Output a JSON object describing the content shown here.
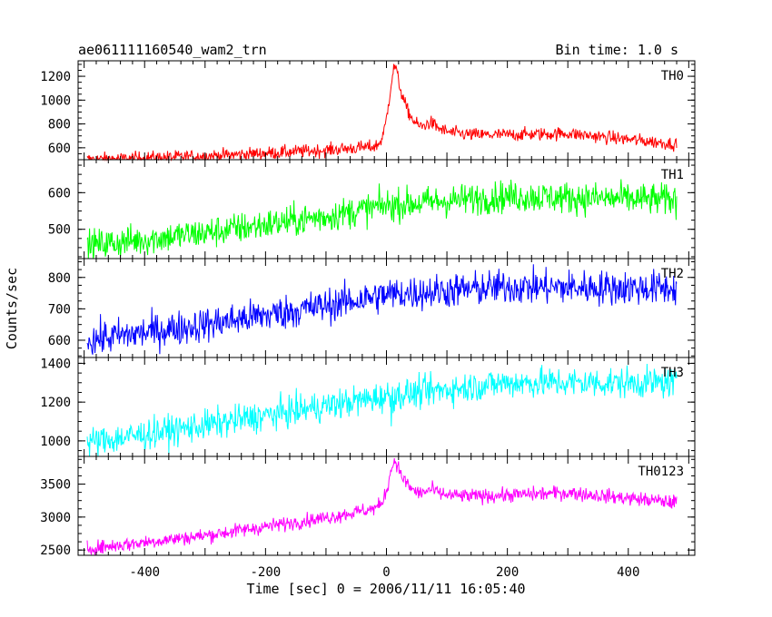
{
  "chart_data": {
    "type": "line",
    "title": "ae061111160540_wam2_trn",
    "subtitle": "Bin time: 1.0 s",
    "xlabel": "Time [sec] 0 = 2006/11/11 16:05:40",
    "ylabel": "Counts/sec",
    "xlim": [
      -510,
      510
    ],
    "x_ticks": [
      -400,
      -200,
      0,
      200,
      400
    ],
    "x_data_range": [
      -495,
      480
    ],
    "panels": [
      {
        "name": "TH0",
        "color": "#ff0000",
        "ylim": [
          500,
          1330
        ],
        "y_ticks": [
          600,
          800,
          1000,
          1200
        ],
        "baseline": [
          [
            -495,
            500
          ],
          [
            -300,
            530
          ],
          [
            -100,
            580
          ],
          [
            -20,
            610
          ],
          [
            0,
            640
          ],
          [
            120,
            700
          ],
          [
            300,
            720
          ],
          [
            480,
            630
          ]
        ],
        "noise": 28,
        "peaks": [
          {
            "t": 15,
            "amp": 640,
            "rise": 10,
            "decay": 22
          },
          {
            "t": 75,
            "amp": 90,
            "rise": 10,
            "decay": 25
          }
        ],
        "dip": {
          "t": 8,
          "depth": 0
        }
      },
      {
        "name": "TH1",
        "color": "#00ff00",
        "ylim": [
          420,
          690
        ],
        "y_ticks": [
          500,
          600
        ],
        "baseline": [
          [
            -495,
            455
          ],
          [
            -300,
            490
          ],
          [
            -100,
            535
          ],
          [
            0,
            565
          ],
          [
            200,
            590
          ],
          [
            480,
            580
          ]
        ],
        "noise": 22,
        "peaks": [],
        "dip": {
          "t": 8,
          "depth": 0
        }
      },
      {
        "name": "TH2",
        "color": "#0000ff",
        "ylim": [
          545,
          860
        ],
        "y_ticks": [
          600,
          700,
          800
        ],
        "baseline": [
          [
            -495,
            600
          ],
          [
            -300,
            650
          ],
          [
            -100,
            710
          ],
          [
            0,
            745
          ],
          [
            200,
            770
          ],
          [
            480,
            765
          ]
        ],
        "noise": 28,
        "peaks": [],
        "dip": {
          "t": 8,
          "depth": 0
        }
      },
      {
        "name": "TH3",
        "color": "#00ffff",
        "ylim": [
          920,
          1430
        ],
        "y_ticks": [
          1000,
          1200,
          1400
        ],
        "baseline": [
          [
            -495,
            990
          ],
          [
            -300,
            1080
          ],
          [
            -100,
            1180
          ],
          [
            0,
            1230
          ],
          [
            200,
            1300
          ],
          [
            480,
            1300
          ]
        ],
        "noise": 40,
        "peaks": [],
        "dip": {
          "t": 8,
          "depth": 150
        }
      },
      {
        "name": "TH0123",
        "color": "#ff00ff",
        "ylim": [
          2420,
          3920
        ],
        "y_ticks": [
          2500,
          3000,
          3500
        ],
        "baseline": [
          [
            -495,
            2520
          ],
          [
            -300,
            2720
          ],
          [
            -100,
            2990
          ],
          [
            -20,
            3130
          ],
          [
            0,
            3200
          ],
          [
            120,
            3300
          ],
          [
            300,
            3370
          ],
          [
            480,
            3220
          ]
        ],
        "noise": 55,
        "peaks": [
          {
            "t": 15,
            "amp": 650,
            "rise": 10,
            "decay": 22
          },
          {
            "t": 75,
            "amp": 110,
            "rise": 10,
            "decay": 25
          }
        ],
        "dip": {
          "t": 8,
          "depth": 0
        }
      }
    ]
  }
}
